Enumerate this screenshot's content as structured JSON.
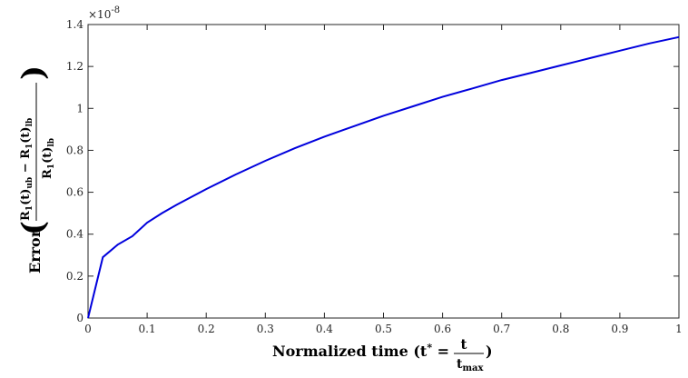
{
  "chart_data": {
    "type": "line",
    "x_axis": {
      "lim": [
        0,
        1
      ],
      "ticks": [
        0,
        0.1,
        0.2,
        0.3,
        0.4,
        0.5,
        0.6,
        0.7,
        0.8,
        0.9,
        1
      ],
      "tick_labels": [
        "0",
        "0.1",
        "0.2",
        "0.3",
        "0.4",
        "0.5",
        "0.6",
        "0.7",
        "0.8",
        "0.9",
        "1"
      ],
      "label_prefix": "Normalized time (t",
      "label_star": "*",
      "label_eq": " = ",
      "label_frac_num": "t",
      "label_frac_den": "t",
      "label_frac_den_sub": "max",
      "label_close": ")"
    },
    "y_axis": {
      "lim": [
        0,
        1.4
      ],
      "ticks": [
        0,
        0.2,
        0.4,
        0.6,
        0.8,
        1,
        1.2,
        1.4
      ],
      "tick_labels": [
        "0",
        "0.2",
        "0.4",
        "0.6",
        "0.8",
        "1",
        "1.2",
        "1.4"
      ],
      "exponent_base": "×10",
      "exponent_power": "-8",
      "label_word": "Error",
      "label_num_a": "R",
      "label_num_a_sub": "1",
      "label_num_a_t": "(t)",
      "label_num_a_sub2": "ub",
      "label_minus": " − ",
      "label_num_b": "R",
      "label_num_b_sub": "1",
      "label_num_b_t": "(t)",
      "label_num_b_sub2": "lb",
      "label_den": "R",
      "label_den_sub": "1",
      "label_den_t": "(t)",
      "label_den_sub2": "lb"
    },
    "grid": false,
    "series": [
      {
        "color": "#0000dd",
        "x": [
          0,
          0.025,
          0.05,
          0.075,
          0.1,
          0.125,
          0.15,
          0.2,
          0.25,
          0.3,
          0.35,
          0.4,
          0.45,
          0.5,
          0.55,
          0.6,
          0.65,
          0.7,
          0.75,
          0.8,
          0.85,
          0.9,
          0.95,
          1.0
        ],
        "values": [
          0,
          0.29,
          0.35,
          0.39,
          0.455,
          0.5,
          0.54,
          0.615,
          0.685,
          0.75,
          0.81,
          0.865,
          0.915,
          0.965,
          1.01,
          1.055,
          1.095,
          1.135,
          1.17,
          1.205,
          1.24,
          1.275,
          1.31,
          1.34
        ]
      }
    ]
  }
}
